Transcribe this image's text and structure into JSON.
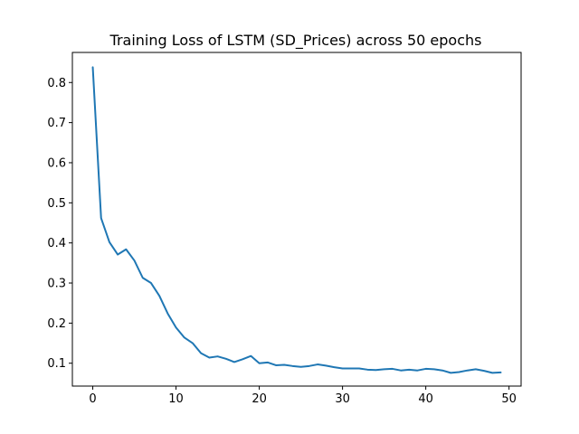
{
  "chart_data": {
    "type": "line",
    "title": "Training Loss of LSTM (SD_Prices) across 50 epochs",
    "xlabel": "",
    "ylabel": "",
    "xlim": [
      -2.45,
      51.45
    ],
    "ylim": [
      0.043,
      0.875
    ],
    "xticks": [
      0,
      10,
      20,
      30,
      40,
      50
    ],
    "yticks": [
      0.1,
      0.2,
      0.3,
      0.4,
      0.5,
      0.6,
      0.7,
      0.8
    ],
    "grid": false,
    "legend": "none",
    "line_color": "#1f77b4",
    "series": [
      {
        "x": [
          0,
          1,
          2,
          3,
          4,
          5,
          6,
          7,
          8,
          9,
          10,
          11,
          12,
          13,
          14,
          15,
          16,
          17,
          18,
          19,
          20,
          21,
          22,
          23,
          24,
          25,
          26,
          27,
          28,
          29,
          30,
          31,
          32,
          33,
          34,
          35,
          36,
          37,
          38,
          39,
          40,
          41,
          42,
          43,
          44,
          45,
          46,
          47,
          48,
          49
        ],
        "values": [
          0.838,
          0.462,
          0.402,
          0.371,
          0.384,
          0.356,
          0.313,
          0.3,
          0.268,
          0.224,
          0.189,
          0.164,
          0.15,
          0.125,
          0.114,
          0.117,
          0.111,
          0.103,
          0.11,
          0.118,
          0.1,
          0.102,
          0.095,
          0.096,
          0.093,
          0.091,
          0.093,
          0.097,
          0.094,
          0.09,
          0.087,
          0.087,
          0.087,
          0.084,
          0.083,
          0.085,
          0.086,
          0.082,
          0.084,
          0.082,
          0.086,
          0.085,
          0.082,
          0.076,
          0.078,
          0.082,
          0.085,
          0.081,
          0.076,
          0.077
        ]
      }
    ]
  }
}
